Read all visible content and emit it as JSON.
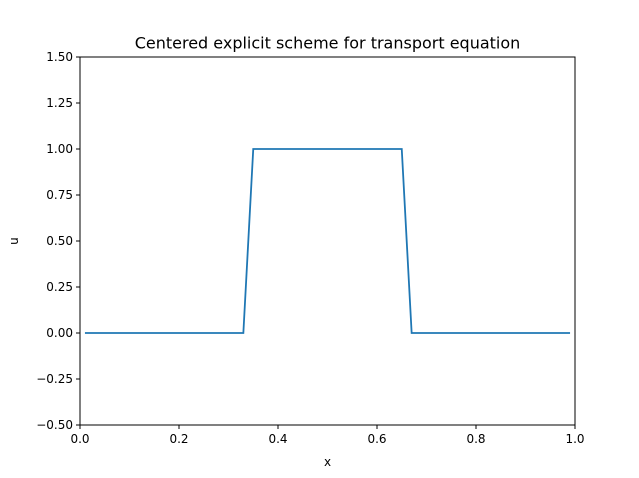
{
  "chart_data": {
    "type": "line",
    "title": "Centered explicit scheme for transport equation",
    "xlabel": "x",
    "ylabel": "u",
    "xlim": [
      0.0,
      1.0
    ],
    "ylim": [
      -0.5,
      1.5
    ],
    "grid": false,
    "x_ticks": [
      "0.0",
      "0.2",
      "0.4",
      "0.6",
      "0.8",
      "1.0"
    ],
    "y_ticks": [
      "−0.50",
      "−0.25",
      "0.00",
      "0.25",
      "0.50",
      "0.75",
      "1.00",
      "1.25",
      "1.50"
    ],
    "series": [
      {
        "color": "#1f77b4",
        "x": [
          0.01,
          0.33,
          0.35,
          0.65,
          0.67,
          0.99
        ],
        "y": [
          0.0,
          0.0,
          1.0,
          1.0,
          0.0,
          0.0
        ]
      }
    ]
  }
}
